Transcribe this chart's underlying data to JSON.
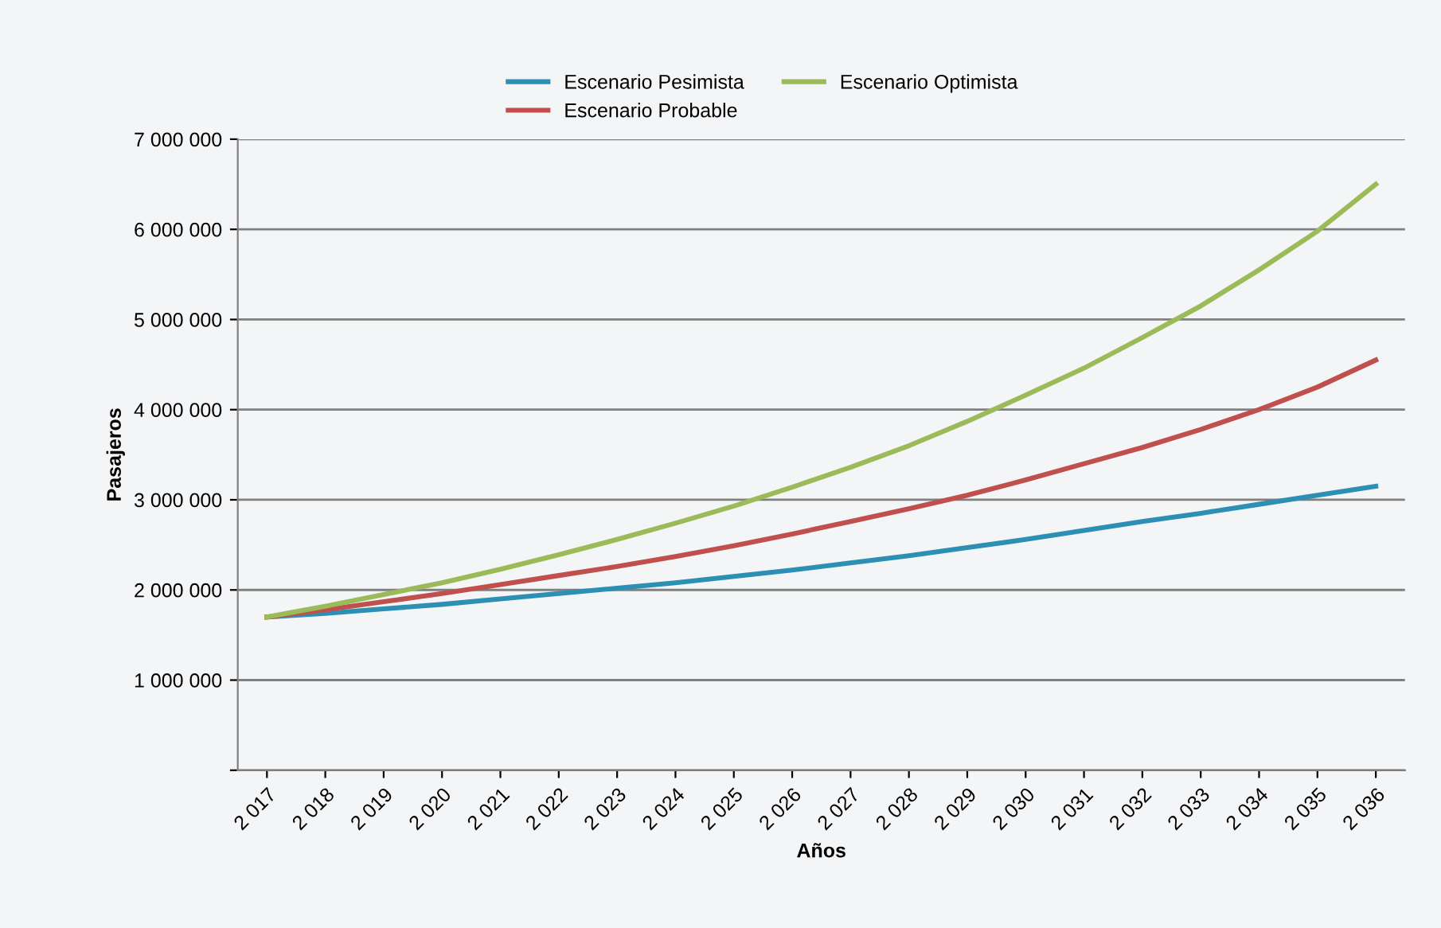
{
  "chart_data": {
    "type": "line",
    "xlabel": "Años",
    "ylabel": "Pasajeros",
    "categories": [
      "2 017",
      "2 018",
      "2 019",
      "2 020",
      "2 021",
      "2 022",
      "2 023",
      "2 024",
      "2 025",
      "2 026",
      "2 027",
      "2 028",
      "2 029",
      "2 030",
      "2 031",
      "2 032",
      "2 033",
      "2 034",
      "2 035",
      "2 036"
    ],
    "series": [
      {
        "name": "Escenario Pesimista",
        "color": "#2e8fb5",
        "values": [
          1700000,
          1740000,
          1790000,
          1840000,
          1900000,
          1960000,
          2020000,
          2080000,
          2150000,
          2220000,
          2300000,
          2380000,
          2470000,
          2560000,
          2660000,
          2760000,
          2850000,
          2950000,
          3050000,
          3150000
        ]
      },
      {
        "name": "Escenario Probable",
        "color": "#c0504d",
        "values": [
          1700000,
          1780000,
          1870000,
          1960000,
          2060000,
          2160000,
          2260000,
          2370000,
          2490000,
          2620000,
          2760000,
          2900000,
          3050000,
          3220000,
          3400000,
          3580000,
          3780000,
          4000000,
          4250000,
          4550000
        ]
      },
      {
        "name": "Escenario Optimista",
        "color": "#9bbb59",
        "values": [
          1700000,
          1820000,
          1950000,
          2080000,
          2230000,
          2390000,
          2560000,
          2740000,
          2930000,
          3140000,
          3360000,
          3600000,
          3870000,
          4160000,
          4460000,
          4800000,
          5150000,
          5550000,
          5980000,
          6500000
        ]
      }
    ],
    "ylim": [
      0,
      7000000
    ],
    "yticks": [
      {
        "value": 0,
        "label": null
      },
      {
        "value": 1000000,
        "label": "1 000 000"
      },
      {
        "value": 2000000,
        "label": "2 000 000"
      },
      {
        "value": 3000000,
        "label": "3 000 000"
      },
      {
        "value": 4000000,
        "label": "4 000 000"
      },
      {
        "value": 5000000,
        "label": "5 000 000"
      },
      {
        "value": 6000000,
        "label": "6 000 000"
      },
      {
        "value": 7000000,
        "label": "7 000 000"
      }
    ],
    "grid": "y",
    "legend": "top",
    "marker": "none",
    "line_style": "solid"
  }
}
